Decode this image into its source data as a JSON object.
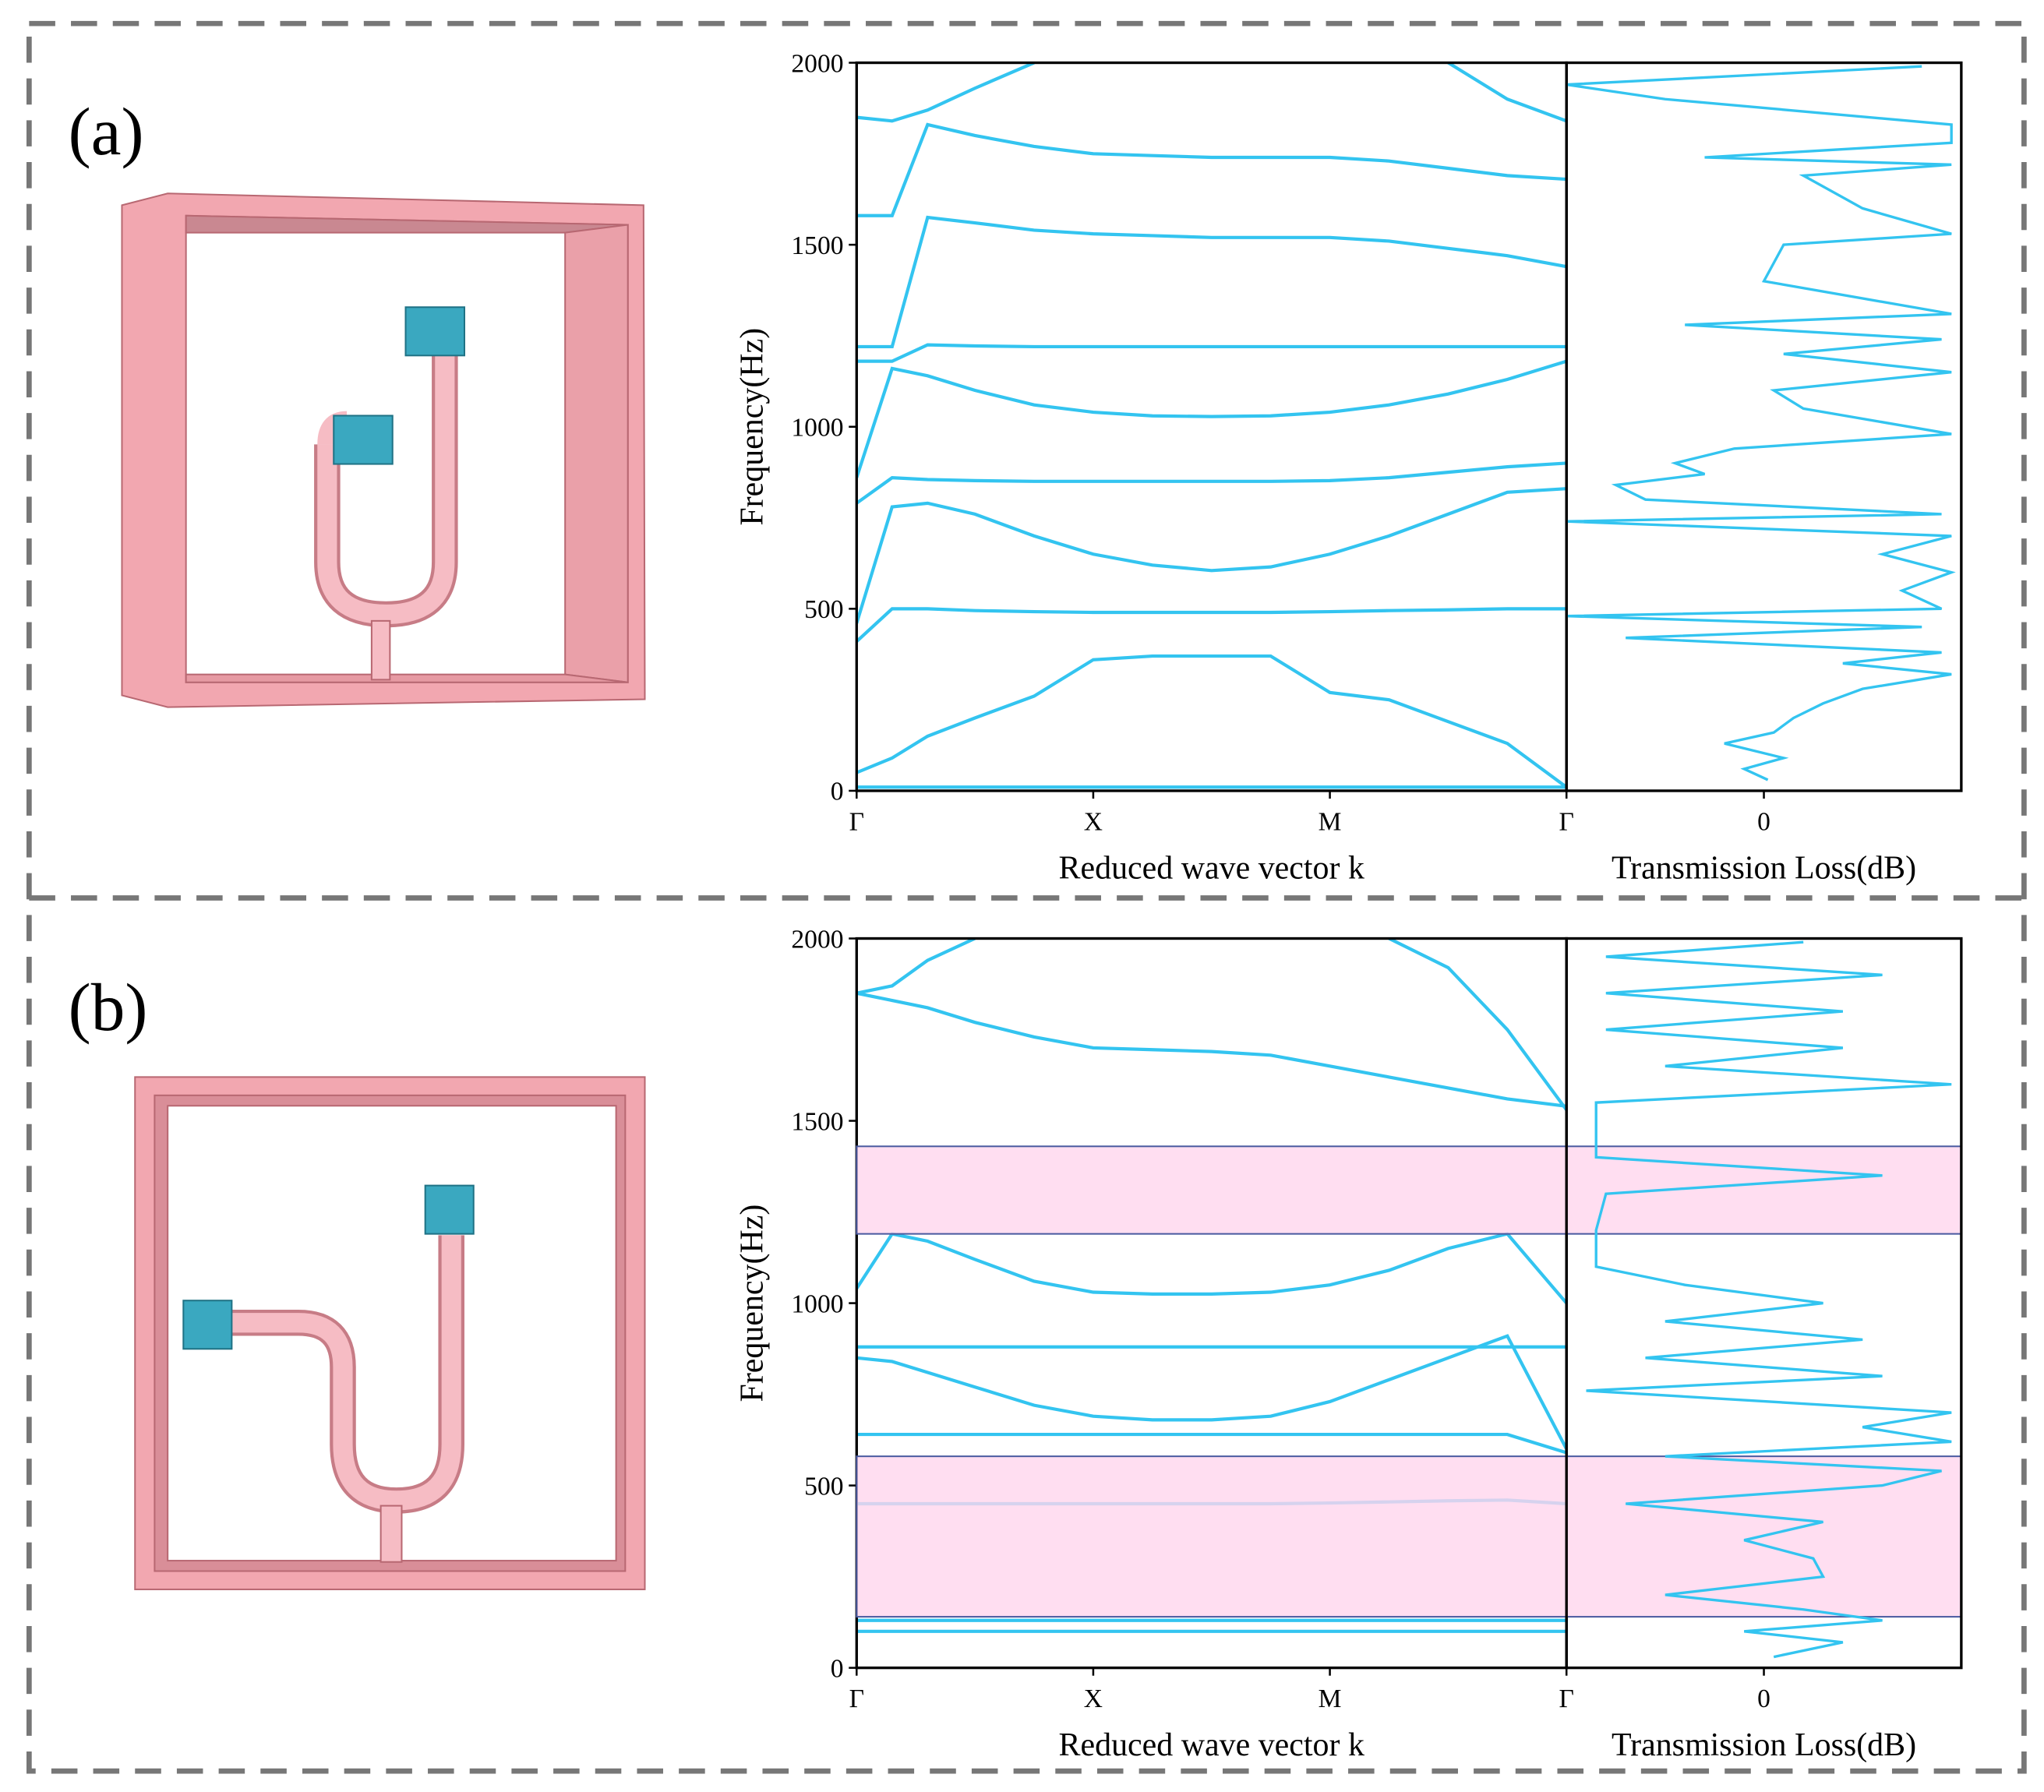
{
  "panel_labels": [
    "(a)",
    "(b)"
  ],
  "chart_data": [
    {
      "type": "line",
      "color": "#33c4f0",
      "xlabel": "Reduced wave vector k",
      "ylabel": "Frequency(Hz)",
      "xlim": [
        0,
        3
      ],
      "ylim": [
        0,
        2000
      ],
      "xticks": [
        {
          "value": 0,
          "label": "Γ"
        },
        {
          "value": 1,
          "label": "X"
        },
        {
          "value": 2,
          "label": "M"
        },
        {
          "value": 3,
          "label": "Γ"
        }
      ],
      "yticks": [
        0,
        500,
        1000,
        1500,
        2000
      ],
      "x": [
        0,
        0.15,
        0.3,
        0.5,
        0.75,
        1,
        1.25,
        1.5,
        1.75,
        2,
        2.25,
        2.5,
        2.75,
        3
      ],
      "series": [
        {
          "values": [
            50,
            90,
            150,
            200,
            260,
            360,
            370,
            370,
            370,
            270,
            250,
            190,
            130,
            10
          ]
        },
        {
          "values": [
            10,
            10,
            10,
            10,
            10,
            10,
            10,
            10,
            10,
            10,
            10,
            10,
            10,
            10
          ]
        },
        {
          "values": [
            410,
            500,
            500,
            495,
            492,
            490,
            490,
            490,
            490,
            492,
            495,
            497,
            500,
            500
          ]
        },
        {
          "values": [
            460,
            780,
            790,
            760,
            700,
            650,
            620,
            605,
            615,
            650,
            700,
            760,
            820,
            830
          ]
        },
        {
          "values": [
            790,
            860,
            855,
            852,
            850,
            850,
            850,
            850,
            850,
            852,
            860,
            875,
            890,
            900
          ]
        },
        {
          "values": [
            860,
            1160,
            1140,
            1100,
            1060,
            1040,
            1030,
            1028,
            1030,
            1040,
            1060,
            1090,
            1130,
            1180
          ]
        },
        {
          "values": [
            1180,
            1180,
            1225,
            1222,
            1220,
            1220,
            1220,
            1220,
            1220,
            1220,
            1220,
            1220,
            1220,
            1220
          ]
        },
        {
          "values": [
            1220,
            1220,
            1575,
            1560,
            1540,
            1530,
            1525,
            1520,
            1520,
            1520,
            1510,
            1490,
            1470,
            1440
          ]
        },
        {
          "values": [
            1580,
            1580,
            1830,
            1800,
            1770,
            1750,
            1745,
            1740,
            1740,
            1740,
            1730,
            1710,
            1690,
            1680
          ]
        },
        {
          "values": [
            1850,
            1840,
            1870,
            1930,
            2000,
            null,
            null,
            null,
            null,
            null,
            null,
            2000,
            1900,
            1840
          ]
        }
      ]
    },
    {
      "type": "curve",
      "color": "#33c4f0",
      "xlabel": "Transmission Loss(dB)",
      "xlim": [
        -1,
        1
      ],
      "ylim": [
        0,
        2000
      ],
      "xticks": [
        0
      ],
      "x": [
        0.02,
        -0.1,
        0.1,
        -0.2,
        0.05,
        0.15,
        0.3,
        0.5,
        0.95,
        0.4,
        0.9,
        -0.7,
        0.8,
        -1.0,
        0.9,
        0.7,
        0.95,
        0.6,
        0.95,
        -1.0,
        0.9,
        -0.6,
        -0.75,
        -0.3,
        -0.45,
        -0.15,
        0.95,
        0.2,
        0.05,
        0.95,
        0.1,
        0.9,
        -0.4,
        0.95,
        0.0,
        0.1,
        0.95,
        0.5,
        0.2,
        0.95,
        -0.3,
        0.95,
        0.95,
        -0.5,
        -1.0,
        0.8
      ],
      "values": [
        30,
        60,
        90,
        130,
        160,
        200,
        240,
        280,
        320,
        350,
        380,
        420,
        450,
        480,
        500,
        550,
        600,
        650,
        700,
        740,
        760,
        800,
        840,
        870,
        900,
        940,
        980,
        1050,
        1100,
        1150,
        1200,
        1240,
        1280,
        1310,
        1400,
        1500,
        1530,
        1600,
        1690,
        1720,
        1740,
        1780,
        1830,
        1900,
        1940,
        1990
      ]
    },
    {
      "type": "line",
      "color": "#33c4f0",
      "xlabel": "Reduced wave vector k",
      "ylabel": "Frequency(Hz)",
      "xlim": [
        0,
        3
      ],
      "ylim": [
        0,
        2000
      ],
      "xticks": [
        {
          "value": 0,
          "label": "Γ"
        },
        {
          "value": 1,
          "label": "X"
        },
        {
          "value": 2,
          "label": "M"
        },
        {
          "value": 3,
          "label": "Γ"
        }
      ],
      "yticks": [
        0,
        500,
        1000,
        1500,
        2000
      ],
      "bands": [
        [
          140,
          580
        ],
        [
          1190,
          1430
        ]
      ],
      "band_color": "#ffd6ee",
      "x": [
        0,
        0.15,
        0.3,
        0.5,
        0.75,
        1,
        1.25,
        1.5,
        1.75,
        2,
        2.25,
        2.5,
        2.75,
        3
      ],
      "series": [
        {
          "values": [
            100,
            100,
            100,
            100,
            100,
            100,
            100,
            100,
            100,
            100,
            100,
            100,
            100,
            100
          ]
        },
        {
          "values": [
            130,
            130,
            130,
            130,
            130,
            130,
            130,
            130,
            130,
            130,
            130,
            130,
            130,
            130
          ]
        },
        {
          "values": [
            450,
            450,
            450,
            450,
            450,
            450,
            450,
            450,
            450,
            452,
            455,
            458,
            460,
            450
          ]
        },
        {
          "values": [
            640,
            640,
            640,
            640,
            640,
            640,
            640,
            640,
            640,
            640,
            640,
            640,
            640,
            590
          ]
        },
        {
          "values": [
            850,
            840,
            810,
            770,
            720,
            690,
            680,
            680,
            690,
            730,
            790,
            850,
            910,
            600
          ]
        },
        {
          "values": [
            880,
            880,
            880,
            880,
            880,
            880,
            880,
            880,
            880,
            880,
            880,
            880,
            880,
            880
          ]
        },
        {
          "values": [
            1040,
            1190,
            1170,
            1120,
            1060,
            1030,
            1025,
            1025,
            1030,
            1050,
            1090,
            1150,
            1190,
            1000
          ]
        },
        {
          "values": [
            1850,
            1830,
            1810,
            1770,
            1730,
            1700,
            1695,
            1690,
            1680,
            1650,
            1620,
            1590,
            1560,
            1540
          ]
        },
        {
          "values": [
            1850,
            1870,
            1940,
            2000,
            null,
            null,
            null,
            null,
            null,
            null,
            null,
            null,
            null,
            null
          ]
        },
        {
          "values": [
            null,
            null,
            null,
            null,
            null,
            null,
            null,
            null,
            null,
            null,
            2000,
            1920,
            1750,
            1530
          ]
        }
      ]
    },
    {
      "type": "curve",
      "color": "#33c4f0",
      "xlabel": "Transmission Loss(dB)",
      "xlim": [
        -1,
        1
      ],
      "ylim": [
        0,
        2000
      ],
      "xticks": [
        0
      ],
      "x": [
        0.05,
        0.4,
        -0.1,
        0.6,
        0.2,
        -0.5,
        0.3,
        0.25,
        -0.1,
        0.3,
        -0.7,
        0.6,
        0.9,
        -0.5,
        0.95,
        0.5,
        0.95,
        -0.9,
        0.6,
        -0.6,
        0.5,
        -0.5,
        0.3,
        -0.4,
        -0.85,
        -0.85,
        -0.8,
        0.6,
        -0.85,
        -0.85,
        -0.85,
        -0.85,
        0.95,
        -0.5,
        0.4,
        -0.8,
        0.4,
        -0.8,
        0.6,
        -0.8,
        0.2
      ],
      "values": [
        30,
        70,
        100,
        130,
        160,
        200,
        250,
        300,
        350,
        400,
        450,
        500,
        540,
        580,
        620,
        660,
        700,
        760,
        800,
        850,
        900,
        950,
        1000,
        1050,
        1100,
        1200,
        1300,
        1350,
        1400,
        1450,
        1500,
        1550,
        1600,
        1650,
        1700,
        1750,
        1800,
        1850,
        1900,
        1950,
        1990
      ]
    }
  ]
}
